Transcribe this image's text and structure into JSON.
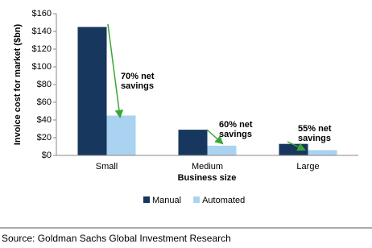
{
  "chart_data": {
    "type": "bar",
    "y_label": "Invoice cost for market ($bn)",
    "x_label": "Business size",
    "categories": [
      "Small",
      "Medium",
      "Large"
    ],
    "series": [
      {
        "name": "Manual",
        "color": "#17375e",
        "values": [
          145,
          29,
          13
        ]
      },
      {
        "name": "Automated",
        "color": "#a9d3f0",
        "values": [
          45,
          11,
          6
        ]
      }
    ],
    "ylim": [
      0,
      160
    ],
    "yticks": [
      {
        "value": 0,
        "label": "$0"
      },
      {
        "value": 20,
        "label": "$20"
      },
      {
        "value": 40,
        "label": "$40"
      },
      {
        "value": 60,
        "label": "$60"
      },
      {
        "value": 80,
        "label": "$80"
      },
      {
        "value": 100,
        "label": "$100"
      },
      {
        "value": 120,
        "label": "$120"
      },
      {
        "value": 140,
        "label": "$140"
      },
      {
        "value": 160,
        "label": "$160"
      }
    ],
    "grid": false,
    "legend": "bottom",
    "annotations": [
      [
        "70% net",
        "savings"
      ],
      [
        "60% net",
        "savings"
      ],
      [
        "55% net",
        "savings"
      ]
    ],
    "source": "Source: Goldman Sachs Global Investment Research"
  }
}
